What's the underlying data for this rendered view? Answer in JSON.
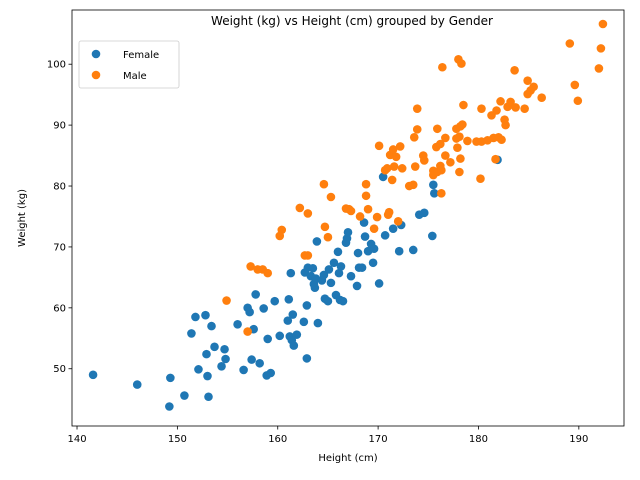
{
  "chart_data": {
    "type": "scatter",
    "title": "Weight (kg) vs Height (cm) grouped by Gender",
    "xlabel": "Height (cm)",
    "ylabel": "Weight (kg)",
    "xlim": [
      139.5,
      194.5
    ],
    "ylim": [
      40.6,
      108.9
    ],
    "xticks": [
      140,
      150,
      160,
      170,
      180,
      190
    ],
    "yticks": [
      50,
      60,
      70,
      80,
      90,
      100
    ],
    "grid": false,
    "legend_position": "top-left",
    "series": [
      {
        "name": "Female",
        "color": "#1f77b4",
        "points": [
          [
            141.6,
            49.0
          ],
          [
            146.0,
            47.4
          ],
          [
            149.2,
            43.8
          ],
          [
            149.3,
            48.5
          ],
          [
            150.7,
            45.6
          ],
          [
            151.4,
            55.8
          ],
          [
            151.8,
            58.5
          ],
          [
            152.1,
            49.9
          ],
          [
            152.8,
            58.8
          ],
          [
            152.9,
            52.4
          ],
          [
            153.0,
            48.8
          ],
          [
            153.1,
            45.4
          ],
          [
            153.4,
            57.0
          ],
          [
            153.7,
            53.6
          ],
          [
            154.4,
            50.4
          ],
          [
            154.7,
            53.2
          ],
          [
            154.8,
            51.6
          ],
          [
            156.0,
            57.3
          ],
          [
            156.6,
            49.8
          ],
          [
            157.0,
            60.0
          ],
          [
            157.2,
            59.3
          ],
          [
            157.4,
            51.5
          ],
          [
            157.6,
            56.5
          ],
          [
            157.8,
            62.2
          ],
          [
            158.2,
            50.9
          ],
          [
            158.6,
            59.9
          ],
          [
            158.9,
            48.9
          ],
          [
            159.0,
            54.9
          ],
          [
            159.3,
            49.3
          ],
          [
            159.7,
            61.1
          ],
          [
            160.2,
            55.4
          ],
          [
            161.0,
            57.9
          ],
          [
            161.1,
            61.4
          ],
          [
            161.2,
            55.3
          ],
          [
            161.3,
            65.7
          ],
          [
            161.4,
            54.7
          ],
          [
            161.5,
            58.9
          ],
          [
            161.6,
            53.8
          ],
          [
            161.9,
            55.6
          ],
          [
            162.6,
            57.7
          ],
          [
            162.7,
            65.8
          ],
          [
            162.9,
            60.4
          ],
          [
            162.9,
            51.7
          ],
          [
            163.0,
            66.6
          ],
          [
            163.3,
            65.2
          ],
          [
            163.5,
            66.5
          ],
          [
            163.6,
            63.9
          ],
          [
            163.7,
            63.3
          ],
          [
            163.8,
            64.8
          ],
          [
            163.9,
            70.9
          ],
          [
            164.0,
            57.5
          ],
          [
            164.4,
            64.5
          ],
          [
            164.6,
            65.4
          ],
          [
            164.7,
            61.5
          ],
          [
            165.0,
            61.1
          ],
          [
            165.1,
            66.3
          ],
          [
            165.3,
            64.1
          ],
          [
            165.6,
            67.4
          ],
          [
            165.8,
            62.1
          ],
          [
            166.0,
            69.2
          ],
          [
            166.1,
            65.7
          ],
          [
            166.2,
            61.3
          ],
          [
            166.3,
            66.8
          ],
          [
            166.5,
            61.1
          ],
          [
            166.8,
            70.7
          ],
          [
            166.9,
            71.4
          ],
          [
            167.0,
            72.4
          ],
          [
            167.3,
            65.2
          ],
          [
            167.9,
            63.6
          ],
          [
            168.0,
            69.0
          ],
          [
            168.1,
            66.6
          ],
          [
            168.4,
            66.6
          ],
          [
            168.6,
            74.0
          ],
          [
            168.7,
            71.7
          ],
          [
            169.0,
            69.3
          ],
          [
            169.3,
            70.5
          ],
          [
            169.5,
            67.4
          ],
          [
            169.6,
            69.7
          ],
          [
            170.1,
            64.0
          ],
          [
            170.5,
            81.5
          ],
          [
            170.7,
            71.9
          ],
          [
            171.5,
            73.0
          ],
          [
            172.1,
            69.3
          ],
          [
            172.3,
            73.6
          ],
          [
            173.5,
            69.5
          ],
          [
            174.1,
            75.3
          ],
          [
            174.6,
            75.6
          ],
          [
            175.4,
            71.8
          ],
          [
            175.5,
            80.2
          ],
          [
            175.6,
            78.8
          ],
          [
            181.9,
            84.3
          ]
        ]
      },
      {
        "name": "Male",
        "color": "#ff7f0e",
        "points": [
          [
            154.9,
            61.2
          ],
          [
            157.0,
            56.1
          ],
          [
            157.3,
            66.8
          ],
          [
            158.0,
            66.3
          ],
          [
            158.5,
            66.3
          ],
          [
            159.0,
            65.7
          ],
          [
            160.2,
            71.8
          ],
          [
            160.4,
            72.8
          ],
          [
            162.2,
            76.4
          ],
          [
            162.7,
            68.6
          ],
          [
            163.0,
            75.5
          ],
          [
            163.0,
            68.6
          ],
          [
            164.6,
            80.3
          ],
          [
            164.7,
            73.3
          ],
          [
            165.0,
            71.6
          ],
          [
            165.3,
            78.2
          ],
          [
            166.8,
            76.3
          ],
          [
            167.1,
            76.2
          ],
          [
            167.3,
            75.9
          ],
          [
            168.2,
            75.0
          ],
          [
            168.8,
            78.4
          ],
          [
            168.8,
            80.3
          ],
          [
            169.0,
            76.2
          ],
          [
            169.6,
            73.0
          ],
          [
            169.9,
            74.9
          ],
          [
            170.1,
            86.6
          ],
          [
            170.7,
            82.6
          ],
          [
            170.9,
            82.9
          ],
          [
            171.0,
            75.3
          ],
          [
            171.1,
            75.7
          ],
          [
            171.2,
            85.1
          ],
          [
            171.4,
            81.0
          ],
          [
            171.5,
            86.0
          ],
          [
            171.6,
            83.2
          ],
          [
            171.8,
            84.8
          ],
          [
            172.0,
            74.2
          ],
          [
            172.2,
            86.5
          ],
          [
            172.4,
            82.9
          ],
          [
            173.1,
            80.0
          ],
          [
            173.5,
            80.2
          ],
          [
            173.6,
            88.0
          ],
          [
            173.7,
            83.2
          ],
          [
            173.9,
            92.7
          ],
          [
            173.9,
            89.3
          ],
          [
            174.5,
            85.0
          ],
          [
            174.6,
            84.2
          ],
          [
            175.5,
            82.5
          ],
          [
            175.5,
            81.8
          ],
          [
            175.8,
            86.4
          ],
          [
            175.9,
            89.4
          ],
          [
            175.9,
            82.3
          ],
          [
            176.2,
            86.9
          ],
          [
            176.2,
            83.3
          ],
          [
            176.3,
            78.8
          ],
          [
            176.3,
            82.6
          ],
          [
            176.4,
            99.5
          ],
          [
            176.7,
            85.0
          ],
          [
            176.7,
            87.9
          ],
          [
            177.2,
            83.9
          ],
          [
            177.8,
            87.8
          ],
          [
            177.8,
            89.4
          ],
          [
            177.9,
            86.3
          ],
          [
            178.0,
            100.8
          ],
          [
            178.1,
            88.1
          ],
          [
            178.1,
            82.3
          ],
          [
            178.2,
            84.5
          ],
          [
            178.2,
            89.8
          ],
          [
            178.3,
            100.1
          ],
          [
            178.4,
            90.1
          ],
          [
            178.5,
            93.3
          ],
          [
            178.9,
            87.4
          ],
          [
            179.8,
            87.3
          ],
          [
            180.2,
            81.2
          ],
          [
            180.3,
            92.7
          ],
          [
            180.3,
            87.3
          ],
          [
            180.9,
            87.5
          ],
          [
            181.3,
            91.6
          ],
          [
            181.5,
            87.9
          ],
          [
            181.7,
            84.4
          ],
          [
            181.8,
            92.4
          ],
          [
            182.0,
            88.0
          ],
          [
            182.2,
            93.9
          ],
          [
            182.3,
            87.6
          ],
          [
            182.6,
            90.9
          ],
          [
            182.7,
            90.0
          ],
          [
            182.9,
            93.0
          ],
          [
            183.2,
            93.8
          ],
          [
            183.6,
            99.0
          ],
          [
            183.7,
            92.9
          ],
          [
            184.6,
            92.7
          ],
          [
            184.9,
            95.1
          ],
          [
            184.9,
            97.3
          ],
          [
            185.2,
            95.7
          ],
          [
            185.5,
            96.3
          ],
          [
            186.3,
            94.5
          ],
          [
            189.1,
            103.4
          ],
          [
            189.6,
            96.6
          ],
          [
            189.9,
            94.0
          ],
          [
            192.0,
            99.3
          ],
          [
            192.2,
            102.6
          ],
          [
            192.4,
            106.6
          ]
        ]
      }
    ]
  }
}
